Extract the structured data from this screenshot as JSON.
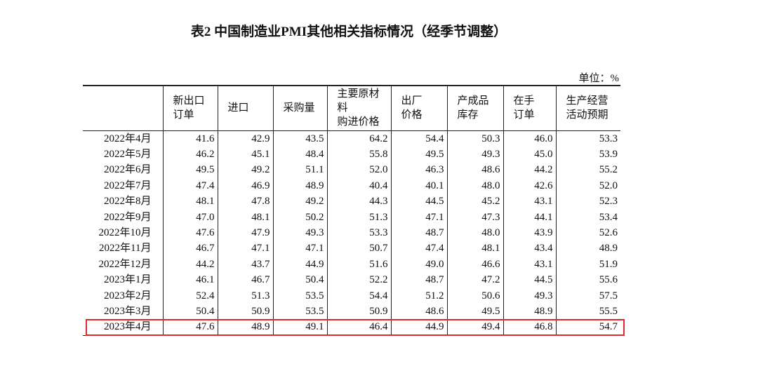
{
  "header": {
    "title": "表2 中国制造业PMI其他相关指标情况（经季节调整）",
    "unit": "单位：%"
  },
  "table": {
    "columns": [
      [
        "新出口",
        "订单"
      ],
      [
        "进口"
      ],
      [
        "采购量"
      ],
      [
        "主要原材",
        "料",
        "购进价格"
      ],
      [
        "出厂",
        "价格"
      ],
      [
        "产成品",
        "库存"
      ],
      [
        "在手",
        "订单"
      ],
      [
        "生产经营",
        "活动预期"
      ]
    ],
    "rows": [
      [
        "2022年4月",
        "41.6",
        "42.9",
        "43.5",
        "64.2",
        "54.4",
        "50.3",
        "46.0",
        "53.3"
      ],
      [
        "2022年5月",
        "46.2",
        "45.1",
        "48.4",
        "55.8",
        "49.5",
        "49.3",
        "45.0",
        "53.9"
      ],
      [
        "2022年6月",
        "49.5",
        "49.2",
        "51.1",
        "52.0",
        "46.3",
        "48.6",
        "44.2",
        "55.2"
      ],
      [
        "2022年7月",
        "47.4",
        "46.9",
        "48.9",
        "40.4",
        "40.1",
        "48.0",
        "42.6",
        "52.0"
      ],
      [
        "2022年8月",
        "48.1",
        "47.8",
        "49.2",
        "44.3",
        "44.5",
        "45.2",
        "43.1",
        "52.3"
      ],
      [
        "2022年9月",
        "47.0",
        "48.1",
        "50.2",
        "51.3",
        "47.1",
        "47.3",
        "44.1",
        "53.4"
      ],
      [
        "2022年10月",
        "47.6",
        "47.9",
        "49.3",
        "53.3",
        "48.7",
        "48.0",
        "43.9",
        "52.6"
      ],
      [
        "2022年11月",
        "46.7",
        "47.1",
        "47.1",
        "50.7",
        "47.4",
        "48.1",
        "43.4",
        "48.9"
      ],
      [
        "2022年12月",
        "44.2",
        "43.7",
        "44.9",
        "51.6",
        "49.0",
        "46.6",
        "43.1",
        "51.9"
      ],
      [
        "2023年1月",
        "46.1",
        "46.7",
        "50.4",
        "52.2",
        "48.7",
        "47.2",
        "44.5",
        "55.6"
      ],
      [
        "2023年2月",
        "52.4",
        "51.3",
        "53.5",
        "54.4",
        "51.2",
        "50.6",
        "49.3",
        "57.5"
      ],
      [
        "2023年3月",
        "50.4",
        "50.9",
        "53.5",
        "50.9",
        "48.6",
        "49.5",
        "48.9",
        "55.5"
      ],
      [
        "2023年4月",
        "47.6",
        "48.9",
        "49.1",
        "46.4",
        "44.9",
        "49.4",
        "46.8",
        "54.7"
      ]
    ]
  }
}
